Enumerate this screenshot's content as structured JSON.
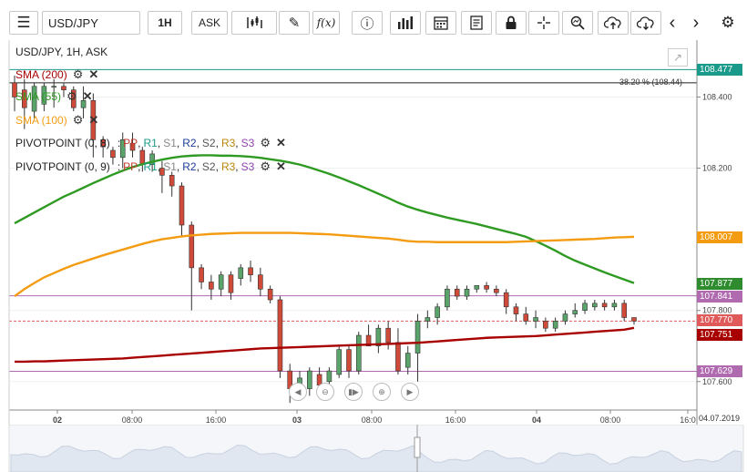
{
  "toolbar": {
    "symbol": "USD/JPY",
    "timeframe": "1H",
    "price_type": "ASK",
    "fx_label": "f(x)"
  },
  "chart": {
    "title": "USD/JPY, 1H, ASK",
    "fib_label": "38.20 % (108.44)",
    "date_label": "04.07.2019",
    "overlays": {
      "sma200": "SMA (200)",
      "sma55": "SMA (55)",
      "sma100": "SMA (100)",
      "pivot1_name": "PIVOTPOINT (0, 8)",
      "pivot2_name": "PIVOTPOINT (0, 9)",
      "pivot_levels": {
        "pp": "PP",
        "r1": "R1",
        "s1": "S1",
        "r2": "R2",
        "s2": "S2",
        "r3": "R3",
        "s3": "S3"
      }
    },
    "price_tags": [
      {
        "label": "108.477",
        "color": "#1a9a8a"
      },
      {
        "label": "108.007",
        "color": "#f39c12"
      },
      {
        "label": "107.877",
        "color": "#2e8b2e"
      },
      {
        "label": "107.841",
        "color": "#b06ab0"
      },
      {
        "label": "107.770",
        "color": "#e05a5a"
      },
      {
        "label": "107.751",
        "color": "#a80000"
      },
      {
        "label": "107.629",
        "color": "#b06ab0"
      }
    ],
    "y_ticks": [
      "108.400",
      "108.200",
      "107.800",
      "107.600"
    ],
    "x_ticks": [
      "02",
      "08:00",
      "16:00",
      "03",
      "08:00",
      "16:00",
      "04",
      "08:00",
      "16:0"
    ]
  },
  "chart_data": {
    "type": "line",
    "title": "USD/JPY, 1H, ASK",
    "ylim": [
      107.52,
      108.56
    ],
    "y_ticks": [
      108.4,
      108.2,
      107.8,
      107.6
    ],
    "x_ticks": [
      "02",
      "08:00",
      "16:00",
      "03",
      "08:00",
      "16:00",
      "04",
      "08:00",
      "16:0"
    ],
    "candles": [
      {
        "o": 108.44,
        "h": 108.46,
        "l": 108.36,
        "c": 108.4
      },
      {
        "o": 108.42,
        "h": 108.45,
        "l": 108.31,
        "c": 108.37
      },
      {
        "o": 108.36,
        "h": 108.44,
        "l": 108.34,
        "c": 108.43
      },
      {
        "o": 108.38,
        "h": 108.44,
        "l": 108.36,
        "c": 108.43
      },
      {
        "o": 108.43,
        "h": 108.45,
        "l": 108.37,
        "c": 108.43
      },
      {
        "o": 108.43,
        "h": 108.44,
        "l": 108.4,
        "c": 108.42
      },
      {
        "o": 108.42,
        "h": 108.43,
        "l": 108.36,
        "c": 108.37
      },
      {
        "o": 108.37,
        "h": 108.43,
        "l": 108.34,
        "c": 108.39
      },
      {
        "o": 108.39,
        "h": 108.41,
        "l": 108.23,
        "c": 108.28
      },
      {
        "o": 108.28,
        "h": 108.29,
        "l": 108.23,
        "c": 108.26
      },
      {
        "o": 108.25,
        "h": 108.26,
        "l": 108.21,
        "c": 108.23
      },
      {
        "o": 108.23,
        "h": 108.3,
        "l": 108.2,
        "c": 108.28
      },
      {
        "o": 108.27,
        "h": 108.3,
        "l": 108.23,
        "c": 108.25
      },
      {
        "o": 108.25,
        "h": 108.26,
        "l": 108.19,
        "c": 108.21
      },
      {
        "o": 108.21,
        "h": 108.25,
        "l": 108.19,
        "c": 108.24
      },
      {
        "o": 108.2,
        "h": 108.22,
        "l": 108.13,
        "c": 108.18
      },
      {
        "o": 108.18,
        "h": 108.19,
        "l": 108.12,
        "c": 108.15
      },
      {
        "o": 108.15,
        "h": 108.16,
        "l": 108.01,
        "c": 108.04
      },
      {
        "o": 108.04,
        "h": 108.05,
        "l": 107.8,
        "c": 107.92
      },
      {
        "o": 107.92,
        "h": 107.93,
        "l": 107.86,
        "c": 107.88
      },
      {
        "o": 107.88,
        "h": 107.9,
        "l": 107.83,
        "c": 107.86
      },
      {
        "o": 107.86,
        "h": 107.91,
        "l": 107.84,
        "c": 107.9
      },
      {
        "o": 107.9,
        "h": 107.91,
        "l": 107.83,
        "c": 107.85
      },
      {
        "o": 107.89,
        "h": 107.93,
        "l": 107.87,
        "c": 107.92
      },
      {
        "o": 107.92,
        "h": 107.94,
        "l": 107.88,
        "c": 107.9
      },
      {
        "o": 107.9,
        "h": 107.92,
        "l": 107.84,
        "c": 107.86
      },
      {
        "o": 107.86,
        "h": 107.87,
        "l": 107.82,
        "c": 107.83
      },
      {
        "o": 107.83,
        "h": 107.84,
        "l": 107.61,
        "c": 107.63
      },
      {
        "o": 107.63,
        "h": 107.65,
        "l": 107.54,
        "c": 107.58
      },
      {
        "o": 107.58,
        "h": 107.63,
        "l": 107.56,
        "c": 107.61
      },
      {
        "o": 107.58,
        "h": 107.64,
        "l": 107.56,
        "c": 107.63
      },
      {
        "o": 107.62,
        "h": 107.64,
        "l": 107.58,
        "c": 107.59
      },
      {
        "o": 107.6,
        "h": 107.64,
        "l": 107.58,
        "c": 107.63
      },
      {
        "o": 107.62,
        "h": 107.7,
        "l": 107.61,
        "c": 107.69
      },
      {
        "o": 107.69,
        "h": 107.7,
        "l": 107.61,
        "c": 107.63
      },
      {
        "o": 107.63,
        "h": 107.74,
        "l": 107.62,
        "c": 107.73
      },
      {
        "o": 107.73,
        "h": 107.76,
        "l": 107.7,
        "c": 107.7
      },
      {
        "o": 107.7,
        "h": 107.76,
        "l": 107.68,
        "c": 107.75
      },
      {
        "o": 107.75,
        "h": 107.77,
        "l": 107.69,
        "c": 107.71
      },
      {
        "o": 107.71,
        "h": 107.75,
        "l": 107.62,
        "c": 107.63
      },
      {
        "o": 107.64,
        "h": 107.7,
        "l": 107.62,
        "c": 107.68
      },
      {
        "o": 107.68,
        "h": 107.79,
        "l": 107.6,
        "c": 107.77
      },
      {
        "o": 107.77,
        "h": 107.8,
        "l": 107.75,
        "c": 107.78
      },
      {
        "o": 107.78,
        "h": 107.82,
        "l": 107.76,
        "c": 107.81
      },
      {
        "o": 107.81,
        "h": 107.87,
        "l": 107.8,
        "c": 107.86
      },
      {
        "o": 107.86,
        "h": 107.87,
        "l": 107.83,
        "c": 107.84
      },
      {
        "o": 107.84,
        "h": 107.87,
        "l": 107.83,
        "c": 107.86
      },
      {
        "o": 107.86,
        "h": 107.87,
        "l": 107.85,
        "c": 107.87
      },
      {
        "o": 107.87,
        "h": 107.88,
        "l": 107.85,
        "c": 107.86
      },
      {
        "o": 107.86,
        "h": 107.87,
        "l": 107.84,
        "c": 107.85
      },
      {
        "o": 107.85,
        "h": 107.86,
        "l": 107.79,
        "c": 107.81
      },
      {
        "o": 107.81,
        "h": 107.82,
        "l": 107.77,
        "c": 107.79
      },
      {
        "o": 107.79,
        "h": 107.81,
        "l": 107.76,
        "c": 107.77
      },
      {
        "o": 107.77,
        "h": 107.8,
        "l": 107.75,
        "c": 107.78
      },
      {
        "o": 107.77,
        "h": 107.78,
        "l": 107.74,
        "c": 107.75
      },
      {
        "o": 107.75,
        "h": 107.78,
        "l": 107.74,
        "c": 107.77
      },
      {
        "o": 107.77,
        "h": 107.8,
        "l": 107.76,
        "c": 107.79
      },
      {
        "o": 107.79,
        "h": 107.82,
        "l": 107.78,
        "c": 107.8
      },
      {
        "o": 107.8,
        "h": 107.83,
        "l": 107.79,
        "c": 107.82
      },
      {
        "o": 107.81,
        "h": 107.83,
        "l": 107.8,
        "c": 107.82
      },
      {
        "o": 107.82,
        "h": 107.83,
        "l": 107.8,
        "c": 107.81
      },
      {
        "o": 107.81,
        "h": 107.83,
        "l": 107.8,
        "c": 107.82
      },
      {
        "o": 107.82,
        "h": 107.83,
        "l": 107.77,
        "c": 107.78
      },
      {
        "o": 107.78,
        "h": 107.78,
        "l": 107.76,
        "c": 107.77
      }
    ],
    "series": [
      {
        "name": "SMA (200)",
        "color": "#a80000",
        "values": [
          107.656,
          107.656,
          107.657,
          107.657,
          107.658,
          107.659,
          107.66,
          107.661,
          107.662,
          107.663,
          107.664,
          107.665,
          107.667,
          107.669,
          107.671,
          107.673,
          107.675,
          107.677,
          107.679,
          107.681,
          107.683,
          107.685,
          107.687,
          107.689,
          107.691,
          107.693,
          107.694,
          107.695,
          107.696,
          107.697,
          107.698,
          107.699,
          107.7,
          107.701,
          107.702,
          107.703,
          107.704,
          107.705,
          107.706,
          107.707,
          107.708,
          107.709,
          107.711,
          107.713,
          107.715,
          107.717,
          107.719,
          107.721,
          107.723,
          107.724,
          107.725,
          107.726,
          107.727,
          107.728,
          107.73,
          107.732,
          107.734,
          107.736,
          107.738,
          107.74,
          107.742,
          107.744,
          107.746,
          107.751
        ]
      },
      {
        "name": "SMA (55)",
        "color": "#2e9a22",
        "values": [
          108.045,
          108.06,
          108.075,
          108.09,
          108.105,
          108.12,
          108.132,
          108.145,
          108.158,
          108.17,
          108.182,
          108.193,
          108.203,
          108.211,
          108.218,
          108.224,
          108.229,
          108.233,
          108.235,
          108.236,
          108.236,
          108.235,
          108.235,
          108.234,
          108.232,
          108.229,
          108.225,
          108.221,
          108.216,
          108.21,
          108.202,
          108.193,
          108.184,
          108.174,
          108.163,
          108.152,
          108.14,
          108.128,
          108.116,
          108.103,
          108.092,
          108.083,
          108.075,
          108.068,
          108.061,
          108.055,
          108.049,
          108.043,
          108.036,
          108.029,
          108.022,
          108.015,
          108.007,
          107.995,
          107.982,
          107.968,
          107.953,
          107.94,
          107.929,
          107.918,
          107.907,
          107.897,
          107.887,
          107.877
        ]
      },
      {
        "name": "SMA (100)",
        "color": "#f39c12",
        "values": [
          107.84,
          107.86,
          107.877,
          107.893,
          107.905,
          107.917,
          107.928,
          107.937,
          107.946,
          107.955,
          107.963,
          107.971,
          107.979,
          107.987,
          107.994,
          108.0,
          108.004,
          108.008,
          108.011,
          108.013,
          108.015,
          108.016,
          108.017,
          108.018,
          108.018,
          108.018,
          108.018,
          108.018,
          108.018,
          108.017,
          108.016,
          108.015,
          108.014,
          108.012,
          108.01,
          108.008,
          108.006,
          108.004,
          108.002,
          107.999,
          107.995,
          107.993,
          107.993,
          107.992,
          107.992,
          107.992,
          107.992,
          107.992,
          107.992,
          107.992,
          107.992,
          107.993,
          107.994,
          107.995,
          107.996,
          107.997,
          107.998,
          107.999,
          108.0,
          108.001,
          108.003,
          108.005,
          108.006,
          108.007
        ]
      }
    ],
    "levels": [
      {
        "name": "38.20 %",
        "value": 108.44
      },
      {
        "value": 108.477
      },
      {
        "value": 107.841
      },
      {
        "value": 107.629
      },
      {
        "value": 107.77
      }
    ]
  }
}
